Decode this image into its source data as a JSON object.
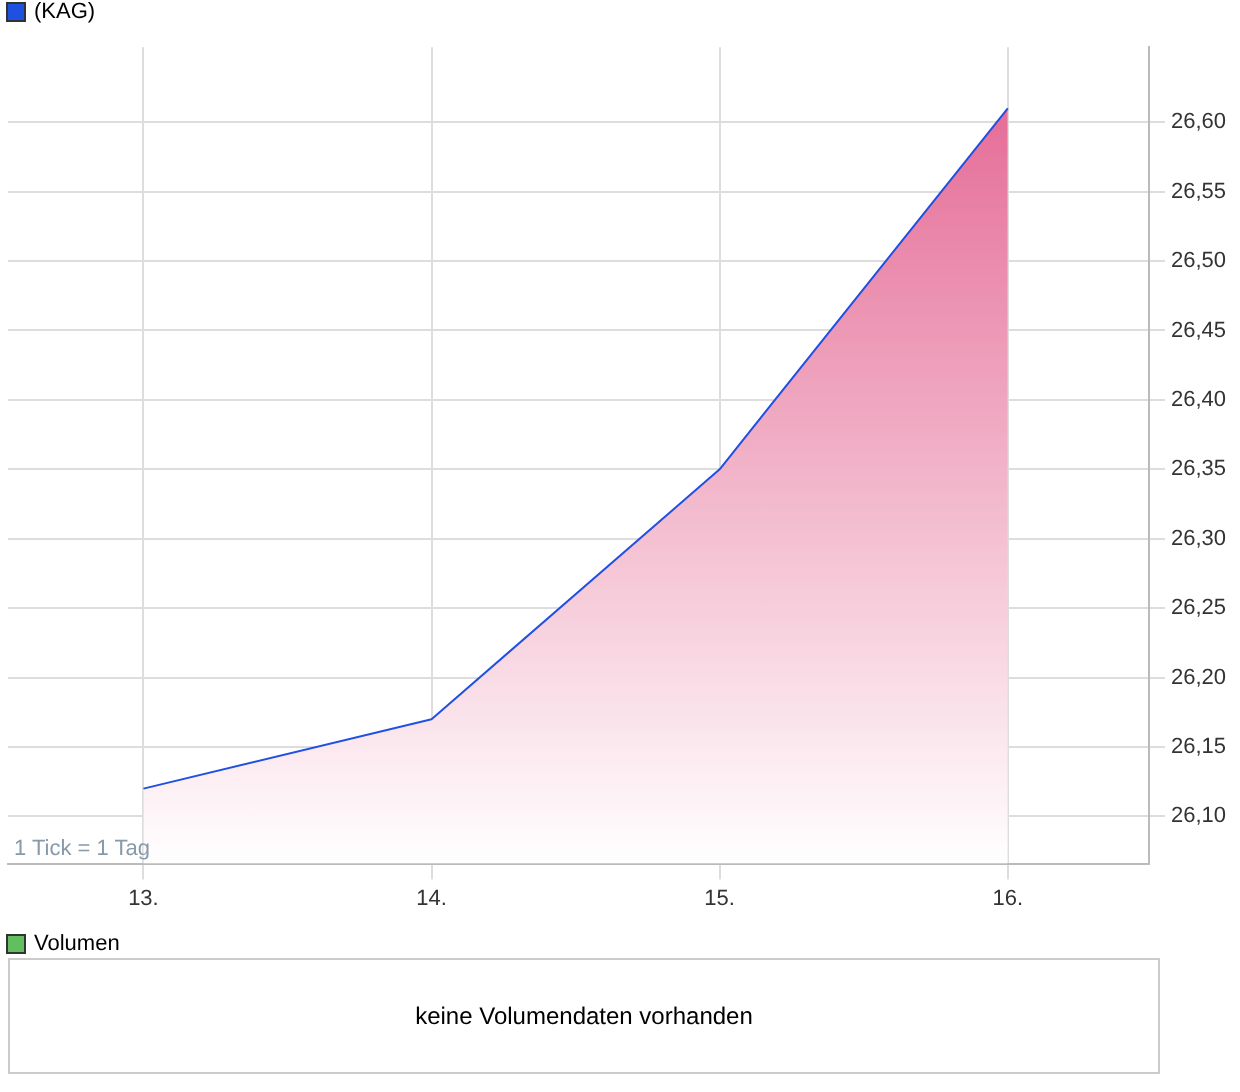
{
  "chart_data": [
    {
      "type": "area",
      "x": [
        13,
        14,
        15,
        16
      ],
      "series": [
        {
          "name": "(KAG)",
          "color": "#e3628f",
          "values": [
            26.12,
            26.17,
            26.35,
            26.61
          ]
        }
      ],
      "xlim": [
        12.53,
        16.49
      ],
      "xticks": [
        {
          "value": 13,
          "label": "13."
        },
        {
          "value": 14,
          "label": "14."
        },
        {
          "value": 15,
          "label": "15."
        },
        {
          "value": 16,
          "label": "16."
        }
      ],
      "ylim": [
        26.066,
        26.654
      ],
      "yticks": [
        {
          "value": 26.1,
          "label": "26,10"
        },
        {
          "value": 26.15,
          "label": "26,15"
        },
        {
          "value": 26.2,
          "label": "26,20"
        },
        {
          "value": 26.25,
          "label": "26,25"
        },
        {
          "value": 26.3,
          "label": "26,30"
        },
        {
          "value": 26.35,
          "label": "26,35"
        },
        {
          "value": 26.4,
          "label": "26,40"
        },
        {
          "value": 26.45,
          "label": "26,45"
        },
        {
          "value": 26.5,
          "label": "26,50"
        },
        {
          "value": 26.55,
          "label": "26,55"
        },
        {
          "value": 26.6,
          "label": "26,60"
        }
      ],
      "grid": true,
      "legend": "top left",
      "annotations": [
        "1 Tick = 1 Tag"
      ]
    },
    {
      "type": "other",
      "subtitle": "Volumen",
      "annotations": [
        "keine Volumendaten vorhanden"
      ]
    }
  ]
}
